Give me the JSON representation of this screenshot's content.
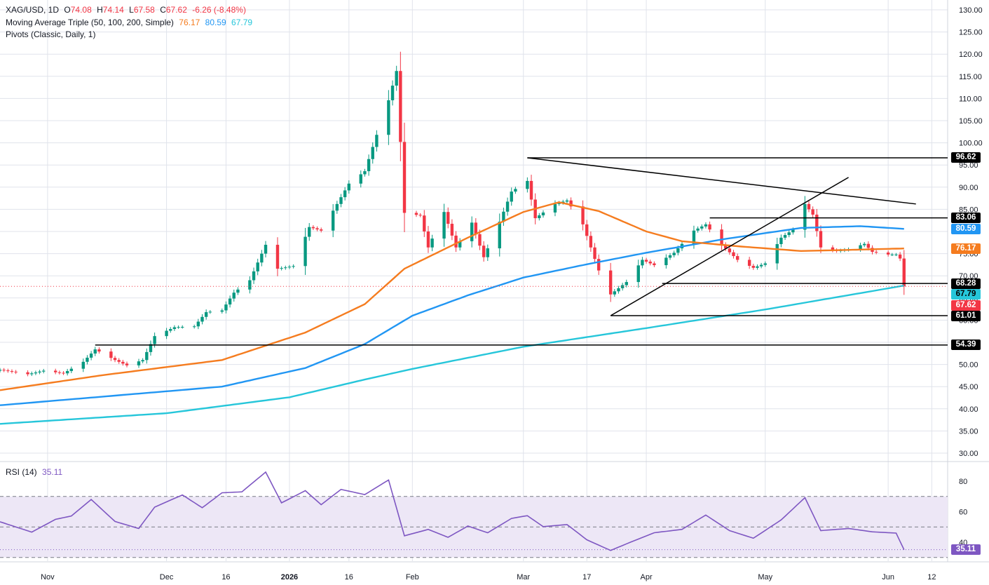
{
  "header": {
    "symbol": "XAG/USD, 1D",
    "o_label": "O",
    "o": "74.08",
    "h_label": "H",
    "h": "74.14",
    "l_label": "L",
    "l": "67.58",
    "c_label": "C",
    "c": "67.62",
    "change": "-6.26 (-8.48%)",
    "ma_label": "Moving Average Triple (50, 100, 200, Simple)",
    "ma50": "76.17",
    "ma100": "80.59",
    "ma200": "67.79",
    "pivots_label": "Pivots (Classic, Daily, 1)"
  },
  "rsi_header": {
    "label": "RSI (14)",
    "value": "35.11"
  },
  "price_tags": [
    {
      "text": "96.62",
      "value": 96.62,
      "bg": "#000000",
      "fg": "#ffffff"
    },
    {
      "text": "83.06",
      "value": 83.06,
      "bg": "#000000",
      "fg": "#ffffff"
    },
    {
      "text": "80.59",
      "value": 80.59,
      "bg": "#2196f3",
      "fg": "#ffffff"
    },
    {
      "text": "76.17",
      "value": 76.17,
      "bg": "#f57c1f",
      "fg": "#ffffff"
    },
    {
      "text": "68.28",
      "value": 68.28,
      "bg": "#000000",
      "fg": "#ffffff"
    },
    {
      "text": "67.79",
      "value": 67.79,
      "bg": "#26c6da",
      "fg": "#000000"
    },
    {
      "text": "67.62",
      "value": 67.62,
      "bg": "#f23645",
      "fg": "#ffffff"
    },
    {
      "text": "61.01",
      "value": 61.01,
      "bg": "#000000",
      "fg": "#ffffff"
    },
    {
      "text": "54.39",
      "value": 54.39,
      "bg": "#000000",
      "fg": "#ffffff"
    }
  ],
  "rsi_tag": {
    "text": "35.11",
    "value": 35.11,
    "bg": "#7e57c2",
    "fg": "#ffffff"
  },
  "colors": {
    "up": "#089981",
    "down": "#f23645",
    "ma50": "#f57c1f",
    "ma100": "#2196f3",
    "ma200": "#26c6da",
    "rsi": "#7e57c2",
    "rsi_band": "#ede7f6",
    "grid": "#e0e3eb",
    "lines": "#000000"
  },
  "chart_data": {
    "type": "candlestick",
    "price_axis": {
      "min": 30,
      "max": 130,
      "ticks": [
        30,
        35,
        40,
        45,
        50,
        55,
        60,
        65,
        70,
        75,
        80,
        85,
        90,
        95,
        100,
        105,
        110,
        115,
        120,
        125,
        130
      ]
    },
    "price_tick_labels": [
      "30.00",
      "35.00",
      "40.00",
      "45.00",
      "50.00",
      "55.00",
      "60.00",
      "65.00",
      "70.00",
      "75.00",
      "80.00",
      "85.00",
      "90.00",
      "95.00",
      "100.00",
      "105.00",
      "110.00",
      "115.00",
      "120.00",
      "125.00",
      "130.00"
    ],
    "time_axis": {
      "start": "2025-10-20",
      "end": "2026-06-16",
      "tick_labels": [
        "Nov",
        "Dec",
        "16",
        "2026",
        "16",
        "Feb",
        "Mar",
        "17",
        "Apr",
        "May",
        "Jun",
        "12"
      ],
      "tick_dates": [
        "2025-11-01",
        "2025-12-01",
        "2025-12-16",
        "2026-01-01",
        "2026-01-16",
        "2026-02-01",
        "2026-03-01",
        "2026-03-17",
        "2026-04-01",
        "2026-05-01",
        "2026-06-01",
        "2026-06-12"
      ],
      "bold_labels": [
        "2026"
      ]
    },
    "close_anchors": [
      [
        "2025-10-20",
        48.8
      ],
      [
        "2025-10-27",
        47.8
      ],
      [
        "2025-10-31",
        48.6
      ],
      [
        "2025-11-05",
        48.0
      ],
      [
        "2025-11-10",
        50.6
      ],
      [
        "2025-11-13",
        53.4
      ],
      [
        "2025-11-18",
        51.0
      ],
      [
        "2025-11-21",
        49.8
      ],
      [
        "2025-11-25",
        51.0
      ],
      [
        "2025-11-28",
        56.4
      ],
      [
        "2025-12-03",
        58.4
      ],
      [
        "2025-12-08",
        58.6
      ],
      [
        "2025-12-11",
        61.8
      ],
      [
        "2025-12-15",
        62.2
      ],
      [
        "2025-12-18",
        66.2
      ],
      [
        "2025-12-22",
        69.0
      ],
      [
        "2025-12-26",
        77.0
      ],
      [
        "2025-12-29",
        71.6
      ],
      [
        "2026-01-02",
        72.2
      ],
      [
        "2026-01-06",
        81.0
      ],
      [
        "2026-01-09",
        80.2
      ],
      [
        "2026-01-13",
        86.2
      ],
      [
        "2026-01-16",
        90.8
      ],
      [
        "2026-01-20",
        93.6
      ],
      [
        "2026-01-23",
        101.8
      ],
      [
        "2026-01-26",
        109.6
      ],
      [
        "2026-01-28",
        116.2
      ],
      [
        "2026-01-30",
        84.2
      ],
      [
        "2026-02-03",
        83.6
      ],
      [
        "2026-02-05",
        76.4
      ],
      [
        "2026-02-09",
        84.4
      ],
      [
        "2026-02-12",
        76.4
      ],
      [
        "2026-02-16",
        82.0
      ],
      [
        "2026-02-19",
        74.2
      ],
      [
        "2026-02-23",
        82.2
      ],
      [
        "2026-02-26",
        89.0
      ],
      [
        "2026-03-02",
        91.4
      ],
      [
        "2026-03-04",
        83.0
      ],
      [
        "2026-03-09",
        86.2
      ],
      [
        "2026-03-12",
        87.0
      ],
      [
        "2026-03-16",
        81.6
      ],
      [
        "2026-03-20",
        71.2
      ],
      [
        "2026-03-23",
        65.8
      ],
      [
        "2026-03-27",
        68.6
      ],
      [
        "2026-03-31",
        73.6
      ],
      [
        "2026-04-03",
        72.4
      ],
      [
        "2026-04-08",
        75.2
      ],
      [
        "2026-04-13",
        80.2
      ],
      [
        "2026-04-16",
        81.6
      ],
      [
        "2026-04-20",
        77.0
      ],
      [
        "2026-04-24",
        73.6
      ],
      [
        "2026-04-28",
        71.8
      ],
      [
        "2026-05-01",
        72.8
      ],
      [
        "2026-05-05",
        78.6
      ],
      [
        "2026-05-08",
        80.4
      ],
      [
        "2026-05-11",
        86.2
      ],
      [
        "2026-05-13",
        83.8
      ],
      [
        "2026-05-15",
        76.4
      ],
      [
        "2026-05-19",
        75.6
      ],
      [
        "2026-05-22",
        76.0
      ],
      [
        "2026-05-26",
        77.2
      ],
      [
        "2026-05-28",
        75.4
      ],
      [
        "2026-06-01",
        74.8
      ],
      [
        "2026-06-03",
        74.8
      ],
      [
        "2026-06-04",
        73.9
      ],
      [
        "2026-06-05",
        67.62
      ]
    ],
    "ma50_anchors": [
      [
        "2025-10-20",
        44.2
      ],
      [
        "2025-11-15",
        47.6
      ],
      [
        "2025-12-15",
        51.0
      ],
      [
        "2026-01-05",
        57.2
      ],
      [
        "2026-01-20",
        63.6
      ],
      [
        "2026-01-30",
        71.6
      ],
      [
        "2026-02-15",
        78.6
      ],
      [
        "2026-03-01",
        84.4
      ],
      [
        "2026-03-10",
        86.6
      ],
      [
        "2026-03-20",
        84.6
      ],
      [
        "2026-04-01",
        80.0
      ],
      [
        "2026-04-10",
        77.8
      ],
      [
        "2026-04-25",
        76.6
      ],
      [
        "2026-05-10",
        75.6
      ],
      [
        "2026-05-20",
        75.8
      ],
      [
        "2026-06-05",
        76.17
      ]
    ],
    "ma100_anchors": [
      [
        "2025-10-20",
        40.8
      ],
      [
        "2025-12-15",
        45.0
      ],
      [
        "2026-01-05",
        49.2
      ],
      [
        "2026-01-20",
        54.6
      ],
      [
        "2026-02-01",
        61.0
      ],
      [
        "2026-02-15",
        65.6
      ],
      [
        "2026-03-01",
        69.6
      ],
      [
        "2026-03-17",
        72.6
      ],
      [
        "2026-04-01",
        75.2
      ],
      [
        "2026-04-20",
        78.2
      ],
      [
        "2026-05-10",
        80.8
      ],
      [
        "2026-05-25",
        81.2
      ],
      [
        "2026-06-05",
        80.59
      ]
    ],
    "ma200_anchors": [
      [
        "2025-10-20",
        36.6
      ],
      [
        "2025-12-01",
        39.0
      ],
      [
        "2026-01-01",
        42.6
      ],
      [
        "2026-01-20",
        46.6
      ],
      [
        "2026-02-01",
        49.0
      ],
      [
        "2026-03-01",
        54.0
      ],
      [
        "2026-04-01",
        58.2
      ],
      [
        "2026-05-01",
        62.4
      ],
      [
        "2026-06-05",
        67.79
      ]
    ],
    "rsi": {
      "ylim": [
        30,
        90
      ],
      "ticks": [
        40,
        60,
        80
      ],
      "tick_labels": [
        "40",
        "60",
        "80"
      ],
      "levels": [
        30,
        50,
        70
      ],
      "anchors": [
        [
          "2025-10-20",
          53.4
        ],
        [
          "2025-10-28",
          46.6
        ],
        [
          "2025-11-03",
          55.0
        ],
        [
          "2025-11-07",
          57.2
        ],
        [
          "2025-11-12",
          68.0
        ],
        [
          "2025-11-18",
          53.6
        ],
        [
          "2025-11-24",
          49.0
        ],
        [
          "2025-11-28",
          63.0
        ],
        [
          "2025-12-05",
          71.0
        ],
        [
          "2025-12-10",
          62.6
        ],
        [
          "2025-12-15",
          72.4
        ],
        [
          "2025-12-20",
          73.0
        ],
        [
          "2025-12-26",
          86.0
        ],
        [
          "2025-12-30",
          65.8
        ],
        [
          "2026-01-05",
          73.8
        ],
        [
          "2026-01-09",
          64.6
        ],
        [
          "2026-01-14",
          74.6
        ],
        [
          "2026-01-20",
          71.2
        ],
        [
          "2026-01-26",
          80.8
        ],
        [
          "2026-01-30",
          44.2
        ],
        [
          "2026-02-05",
          48.4
        ],
        [
          "2026-02-10",
          43.2
        ],
        [
          "2026-02-15",
          50.6
        ],
        [
          "2026-02-20",
          46.2
        ],
        [
          "2026-02-26",
          55.6
        ],
        [
          "2026-03-02",
          57.4
        ],
        [
          "2026-03-06",
          50.2
        ],
        [
          "2026-03-12",
          51.6
        ],
        [
          "2026-03-17",
          41.6
        ],
        [
          "2026-03-23",
          34.6
        ],
        [
          "2026-03-28",
          40.0
        ],
        [
          "2026-04-03",
          46.2
        ],
        [
          "2026-04-10",
          48.4
        ],
        [
          "2026-04-16",
          57.8
        ],
        [
          "2026-04-22",
          47.6
        ],
        [
          "2026-04-28",
          42.6
        ],
        [
          "2026-05-05",
          54.6
        ],
        [
          "2026-05-11",
          69.2
        ],
        [
          "2026-05-15",
          47.6
        ],
        [
          "2026-05-22",
          49.0
        ],
        [
          "2026-05-28",
          46.8
        ],
        [
          "2026-06-03",
          46.0
        ],
        [
          "2026-06-05",
          35.11
        ]
      ]
    },
    "pivot_levels": [
      {
        "value": 96.62,
        "from": "2026-03-02",
        "to": "2026-06-12"
      },
      {
        "value": 83.06,
        "from": "2026-04-17",
        "to": "2026-06-12"
      },
      {
        "value": 68.28,
        "from": "2026-04-05",
        "to": "2026-06-12"
      },
      {
        "value": 61.01,
        "from": "2026-03-23",
        "to": "2026-06-12"
      },
      {
        "value": 54.39,
        "from": "2025-11-13",
        "to": "2026-06-12"
      }
    ],
    "trendlines": [
      {
        "from": [
          "2026-03-02",
          96.62
        ],
        "to": [
          "2026-06-08",
          86.2
        ]
      },
      {
        "from": [
          "2026-03-23",
          61.01
        ],
        "to": [
          "2026-05-22",
          92.2
        ]
      }
    ]
  }
}
